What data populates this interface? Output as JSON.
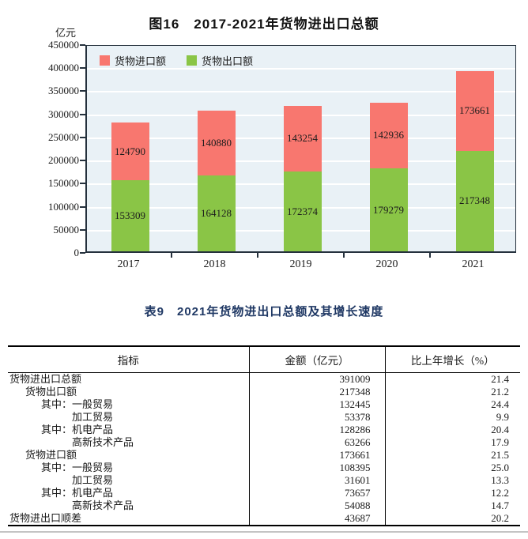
{
  "chart_data": {
    "type": "bar",
    "subtype": "stacked",
    "title": "图16　2017-2021年货物进出口总额",
    "ylabel": "亿元",
    "categories": [
      "2017",
      "2018",
      "2019",
      "2020",
      "2021"
    ],
    "series": [
      {
        "name": "货物出口额",
        "color": "#8ac546",
        "values": [
          153309,
          164128,
          172374,
          179279,
          217348
        ]
      },
      {
        "name": "货物进口额",
        "color": "#f8776f",
        "values": [
          124790,
          140880,
          143254,
          142936,
          173661
        ]
      }
    ],
    "legend": [
      {
        "label": "货物进口额",
        "color": "#f8776f"
      },
      {
        "label": "货物出口额",
        "color": "#8ac546"
      }
    ],
    "legend_position": "top-left",
    "ylim": [
      0,
      450000
    ],
    "ytick_step": 50000,
    "grid": true,
    "plot_background": "#e9f1f6",
    "gridline_color": "#ffffff",
    "frame_color": "#25313d"
  },
  "table": {
    "title": "表9　2021年货物进出口总额及其增长速度",
    "columns": [
      "指标",
      "金额（亿元）",
      "比上年增长（%）"
    ],
    "rows": [
      {
        "label": "货物进出口总额",
        "indent": 0,
        "amount": "391009",
        "growth": "21.4"
      },
      {
        "label": "货物出口额",
        "indent": 1,
        "amount": "217348",
        "growth": "21.2"
      },
      {
        "label": "其中：一般贸易",
        "indent": 2,
        "amount": "132445",
        "growth": "24.4"
      },
      {
        "label": "加工贸易",
        "indent": 3,
        "amount": "53378",
        "growth": "9.9"
      },
      {
        "label": "其中：机电产品",
        "indent": 2,
        "amount": "128286",
        "growth": "20.4"
      },
      {
        "label": "高新技术产品",
        "indent": 3,
        "amount": "63266",
        "growth": "17.9"
      },
      {
        "label": "货物进口额",
        "indent": 1,
        "amount": "173661",
        "growth": "21.5"
      },
      {
        "label": "其中：一般贸易",
        "indent": 2,
        "amount": "108395",
        "growth": "25.0"
      },
      {
        "label": "加工贸易",
        "indent": 3,
        "amount": "31601",
        "growth": "13.3"
      },
      {
        "label": "其中：机电产品",
        "indent": 2,
        "amount": "73657",
        "growth": "12.2"
      },
      {
        "label": "高新技术产品",
        "indent": 3,
        "amount": "54088",
        "growth": "14.7"
      },
      {
        "label": "货物进出口顺差",
        "indent": 0,
        "amount": "43687",
        "growth": "20.2"
      }
    ]
  }
}
